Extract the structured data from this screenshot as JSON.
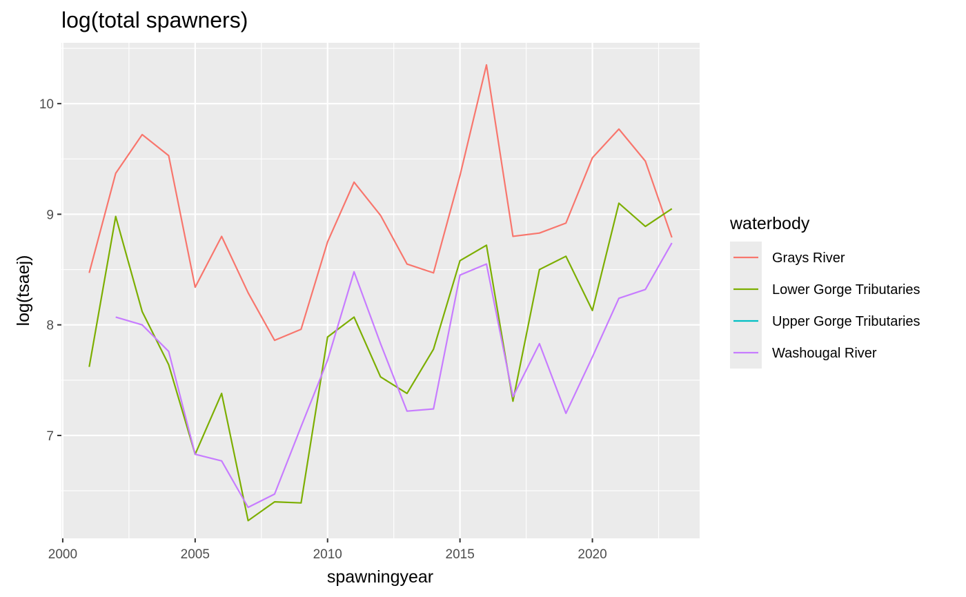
{
  "chart_data": {
    "type": "line",
    "title": "log(total spawners)",
    "xlabel": "spawningyear",
    "ylabel": "log(tsaej)",
    "xlim": [
      1999.95,
      2024.05
    ],
    "ylim": [
      6.07,
      10.55
    ],
    "x_ticks": [
      2000,
      2005,
      2010,
      2015,
      2020
    ],
    "y_ticks": [
      7,
      8,
      9,
      10
    ],
    "grid": true,
    "legend": {
      "title": "waterbody",
      "placement": "right"
    },
    "series": [
      {
        "name": "Grays River",
        "color": "#F8766D",
        "x": [
          2001,
          2002,
          2003,
          2004,
          2005,
          2006,
          2007,
          2008,
          2009,
          2010,
          2011,
          2012,
          2013,
          2014,
          2015,
          2016,
          2017,
          2018,
          2019,
          2020,
          2021,
          2022,
          2023
        ],
        "y": [
          8.47,
          9.37,
          9.72,
          9.53,
          8.34,
          8.8,
          8.29,
          7.86,
          7.96,
          8.75,
          9.29,
          8.99,
          8.55,
          8.47,
          9.35,
          10.35,
          8.8,
          8.83,
          8.92,
          9.51,
          9.77,
          9.48,
          8.79
        ]
      },
      {
        "name": "Lower Gorge Tributaries",
        "color": "#7CAE00",
        "x": [
          2001,
          2002,
          2003,
          2004,
          2005,
          2006,
          2007,
          2008,
          2009,
          2010,
          2011,
          2012,
          2013,
          2014,
          2015,
          2016,
          2017,
          2018,
          2019,
          2020,
          2021,
          2022,
          2023
        ],
        "y": [
          7.62,
          8.98,
          8.12,
          7.64,
          6.83,
          7.38,
          6.23,
          6.4,
          6.39,
          7.89,
          8.07,
          7.53,
          7.38,
          7.78,
          8.58,
          8.72,
          7.31,
          8.5,
          8.62,
          8.13,
          9.1,
          8.89,
          9.05
        ]
      },
      {
        "name": "Upper Gorge Tributaries",
        "color": "#00BFC4",
        "x": [],
        "y": []
      },
      {
        "name": "Washougal River",
        "color": "#C77CFF",
        "x": [
          2002,
          2003,
          2004,
          2005,
          2006,
          2007,
          2008,
          2009,
          2010,
          2011,
          2012,
          2013,
          2014,
          2015,
          2016,
          2017,
          2018,
          2019,
          2020,
          2021,
          2022,
          2023
        ],
        "y": [
          8.07,
          8.0,
          7.76,
          6.83,
          6.77,
          6.35,
          6.47,
          7.08,
          7.68,
          8.48,
          7.83,
          7.22,
          7.24,
          8.45,
          8.55,
          7.35,
          7.83,
          7.2,
          7.71,
          8.24,
          8.32,
          8.74
        ]
      }
    ]
  }
}
